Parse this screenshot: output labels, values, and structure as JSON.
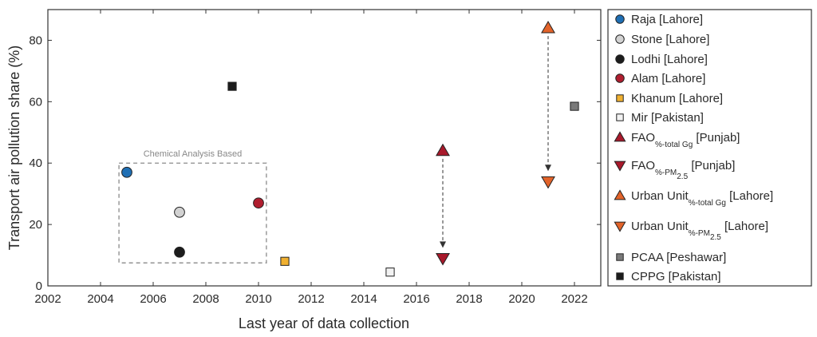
{
  "chart_data": {
    "type": "scatter",
    "xlabel": "Last year of data collection",
    "ylabel": "Transport air pollution share (%)",
    "xlim": [
      2002,
      2023
    ],
    "ylim": [
      0,
      90
    ],
    "xticks": [
      "2002",
      "2004",
      "2006",
      "2008",
      "2010",
      "2012",
      "2014",
      "2016",
      "2018",
      "2020",
      "2022"
    ],
    "yticks": [
      "0",
      "20",
      "40",
      "60",
      "80"
    ],
    "grid": false,
    "legend_position": "outside-right",
    "annotation": "Chemical Analysis Based",
    "annotation_box": {
      "x": [
        2004.7,
        2010.3
      ],
      "y": [
        7.5,
        40
      ]
    },
    "arrows": [
      {
        "x": 2017,
        "from": 44,
        "to": 9
      },
      {
        "x": 2021,
        "from": 84,
        "to": 34
      }
    ],
    "series": [
      {
        "name": "Raja",
        "region": "[Lahore]",
        "marker": "circle",
        "color": "#1f6fb4",
        "points": [
          [
            2005,
            37
          ]
        ]
      },
      {
        "name": "Stone",
        "region": "[Lahore]",
        "marker": "circle",
        "color": "#d2d2d2",
        "points": [
          [
            2007,
            24
          ]
        ]
      },
      {
        "name": "Lodhi",
        "region": "[Lahore]",
        "marker": "circle",
        "color": "#1c1c1c",
        "points": [
          [
            2007,
            11
          ]
        ]
      },
      {
        "name": "Alam",
        "region": "[Lahore]",
        "marker": "circle",
        "color": "#b01e2f",
        "points": [
          [
            2010,
            27
          ]
        ]
      },
      {
        "name": "Khanum",
        "region": "[Lahore]",
        "marker": "square",
        "color": "#f0b030",
        "points": [
          [
            2011,
            8
          ]
        ]
      },
      {
        "name": "Mir",
        "region": "[Pakistan]",
        "marker": "square",
        "color": "#f2f2f2",
        "points": [
          [
            2015,
            4.5
          ]
        ]
      },
      {
        "name": "FAO",
        "sub": "%-total Gg",
        "region": "[Punjab]",
        "marker": "triangle-up",
        "color": "#a8192b",
        "points": [
          [
            2017,
            44
          ]
        ]
      },
      {
        "name": "FAO",
        "sub": "%-PM",
        "subsub": "2.5",
        "region": "[Punjab]",
        "marker": "triangle-down",
        "color": "#a8192b",
        "points": [
          [
            2017,
            9
          ]
        ]
      },
      {
        "name": "Urban Unit",
        "sub": "%-total Gg",
        "region": "[Lahore]",
        "marker": "triangle-up",
        "color": "#e2632a",
        "points": [
          [
            2021,
            84
          ]
        ]
      },
      {
        "name": "Urban Unit",
        "sub": "%-PM",
        "subsub": "2.5",
        "region": "[Lahore]",
        "marker": "triangle-down",
        "color": "#e2632a",
        "points": [
          [
            2021,
            34
          ]
        ]
      },
      {
        "name": "PCAA",
        "region": "[Peshawar]",
        "marker": "square",
        "color": "#7a7a7a",
        "points": [
          [
            2022,
            58.5
          ]
        ]
      },
      {
        "name": "CPPG",
        "region": "[Pakistan]",
        "marker": "square",
        "color": "#1c1c1c",
        "points": [
          [
            2009,
            65
          ]
        ]
      }
    ]
  }
}
